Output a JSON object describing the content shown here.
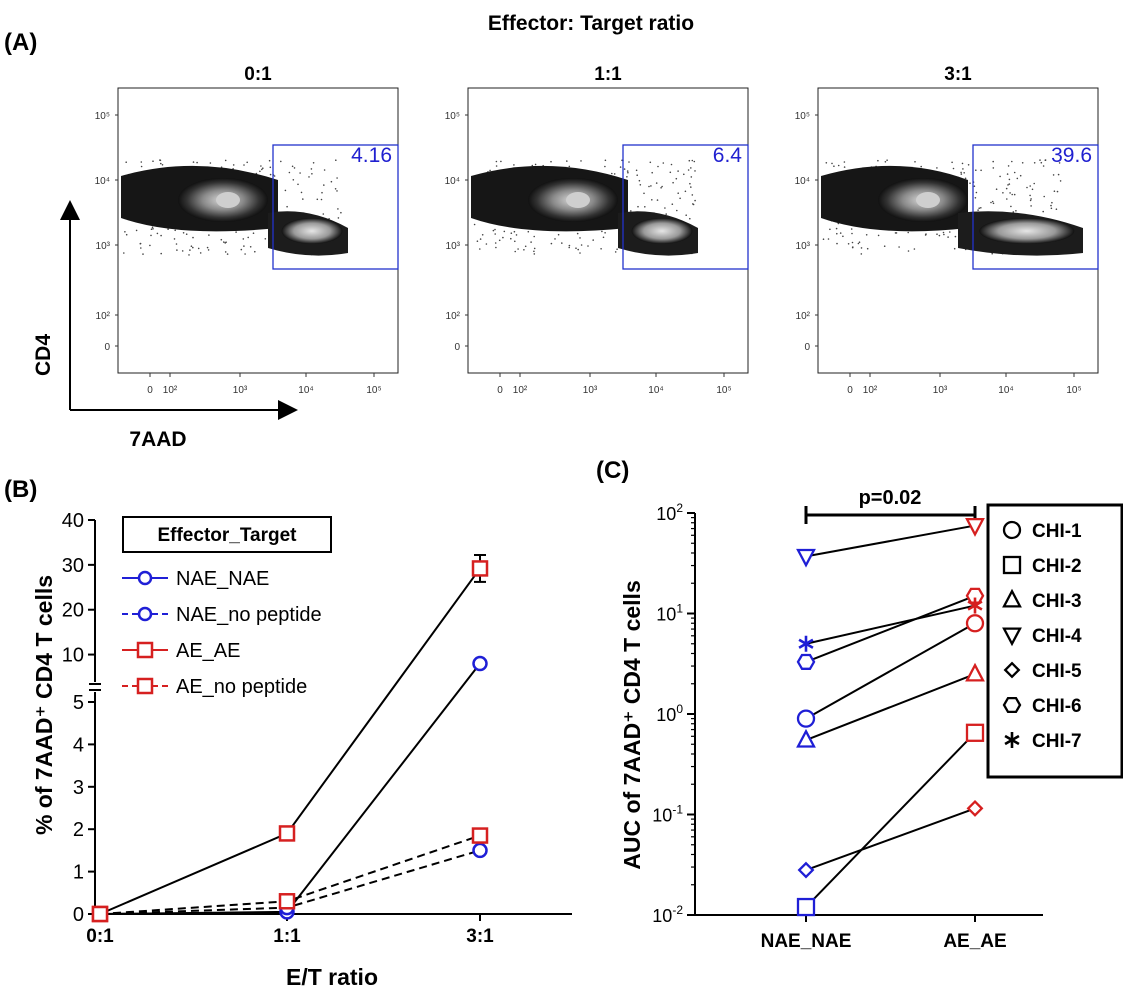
{
  "figure": {
    "header": "Effector: Target ratio",
    "panel_a_label": "(A)",
    "panel_b_label": "(B)",
    "panel_c_label": "(C)"
  },
  "panel_a": {
    "y_axis_label": "CD4",
    "x_axis_label": "7AAD",
    "y_tick_labels": [
      "10⁵",
      "10⁴",
      "10³",
      "10²",
      "0"
    ],
    "x_tick_labels": [
      "0",
      "10²",
      "10³",
      "10⁴",
      "10⁵"
    ],
    "plots": [
      {
        "title": "0:1",
        "gate_value": "4.16"
      },
      {
        "title": "1:1",
        "gate_value": "6.4"
      },
      {
        "title": "3:1",
        "gate_value": "39.6"
      }
    ]
  },
  "chart_data": [
    {
      "type": "line",
      "panel": "B",
      "xlabel": "E/T ratio",
      "ylabel": "% of 7AAD⁺ CD4 T cells",
      "categories": [
        "0:1",
        "1:1",
        "3:1"
      ],
      "y_axis_break": true,
      "ylim_lower": [
        0,
        5
      ],
      "ylim_upper": [
        5,
        40
      ],
      "y_ticks_lower": [
        "0",
        "1",
        "2",
        "3",
        "4",
        "5"
      ],
      "y_ticks_upper": [
        "10",
        "20",
        "30",
        "40"
      ],
      "legend_title": "Effector_Target",
      "legend_position": "top-left",
      "series": [
        {
          "name": "NAE_NAE",
          "marker": "circle",
          "color": "#1f1fd6",
          "line": "solid",
          "values": [
            0,
            0.05,
            8.0
          ]
        },
        {
          "name": "NAE_no peptide",
          "marker": "circle",
          "color": "#1f1fd6",
          "line": "dashed",
          "values": [
            0,
            0.15,
            1.5
          ]
        },
        {
          "name": "AE_AE",
          "marker": "square",
          "color": "#d62020",
          "line": "solid",
          "values": [
            0,
            1.9,
            29.2
          ],
          "error": [
            0,
            0,
            3.0
          ]
        },
        {
          "name": "AE_no peptide",
          "marker": "square",
          "color": "#d62020",
          "line": "dashed",
          "values": [
            0,
            0.3,
            1.85
          ]
        }
      ]
    },
    {
      "type": "scatter",
      "panel": "C",
      "ylabel": "AUC of 7AAD⁺ CD4 T cells",
      "categories": [
        "NAE_NAE",
        "AE_AE"
      ],
      "y_scale": "log",
      "ylim": [
        0.01,
        100
      ],
      "y_ticks": [
        {
          "base": "10",
          "exp": "-2"
        },
        {
          "base": "10",
          "exp": "-1"
        },
        {
          "base": "10",
          "exp": "0"
        },
        {
          "base": "10",
          "exp": "1"
        },
        {
          "base": "10",
          "exp": "2"
        }
      ],
      "significance": "p=0.02",
      "legend_position": "top-right",
      "colors": {
        "NAE_NAE": "#1f1fd6",
        "AE_AE": "#d62020"
      },
      "series": [
        {
          "name": "CHI-1",
          "marker": "circle",
          "values": [
            0.9,
            8.0
          ]
        },
        {
          "name": "CHI-2",
          "marker": "square",
          "values": [
            0.012,
            0.65
          ]
        },
        {
          "name": "CHI-3",
          "marker": "triangle-up",
          "values": [
            0.55,
            2.5
          ]
        },
        {
          "name": "CHI-4",
          "marker": "triangle-down",
          "values": [
            37,
            75
          ]
        },
        {
          "name": "CHI-5",
          "marker": "diamond",
          "values": [
            0.028,
            0.115
          ]
        },
        {
          "name": "CHI-6",
          "marker": "hexagon",
          "values": [
            3.3,
            15
          ]
        },
        {
          "name": "CHI-7",
          "marker": "asterisk",
          "values": [
            5.0,
            12
          ]
        }
      ]
    }
  ]
}
